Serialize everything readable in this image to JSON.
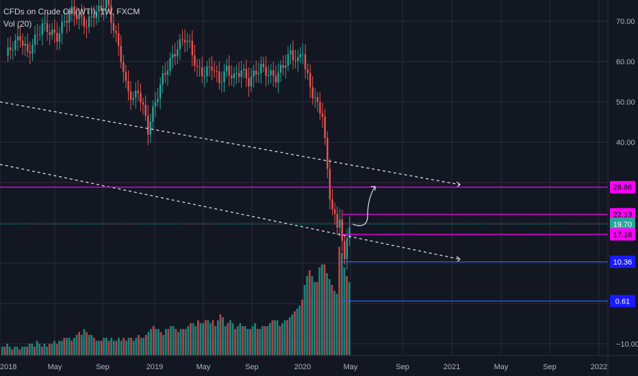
{
  "legend": {
    "symbol_line": "CFDs on Crude Oil (WTI), 1W, FXCM",
    "volume_line": "Vol (20)"
  },
  "chart_data": {
    "type": "candlestick",
    "title": "CFDs on Crude Oil (WTI), 1W, FXCM",
    "timeframe": "1W",
    "ylim": [
      -12,
      76
    ],
    "y_ticks": [
      70,
      60,
      50,
      40,
      -10
    ],
    "y_tick_labels": [
      "70.00",
      "60.00",
      "50.00",
      "40.00",
      "−10.00"
    ],
    "x_ticks": [
      "2018",
      "May",
      "Sep",
      "2019",
      "May",
      "Sep",
      "2020",
      "May",
      "Sep",
      "2021",
      "May",
      "Sep",
      "2022"
    ],
    "grid": true,
    "colors": {
      "up": "#26a69a",
      "down": "#ef5350",
      "background": "#131722",
      "grid": "#2a2e39"
    },
    "price_path": [
      [
        0,
        61.5
      ],
      [
        3,
        64
      ],
      [
        6,
        66
      ],
      [
        9,
        62
      ],
      [
        12,
        65.5
      ],
      [
        15,
        69
      ],
      [
        18,
        67.5
      ],
      [
        21,
        66
      ],
      [
        24,
        70
      ],
      [
        27,
        72.5
      ],
      [
        30,
        71
      ],
      [
        33,
        69
      ],
      [
        36,
        72
      ],
      [
        39,
        73
      ],
      [
        41,
        75.5
      ],
      [
        43,
        70.5
      ],
      [
        45,
        66
      ],
      [
        47,
        61
      ],
      [
        49,
        54
      ],
      [
        52,
        50.5
      ],
      [
        54,
        53
      ],
      [
        57,
        46
      ],
      [
        58,
        43
      ],
      [
        61,
        50
      ],
      [
        64,
        56
      ],
      [
        67,
        60
      ],
      [
        70,
        63.5
      ],
      [
        73,
        66
      ],
      [
        75,
        64
      ],
      [
        78,
        58
      ],
      [
        81,
        57
      ],
      [
        84,
        59
      ],
      [
        87,
        55
      ],
      [
        90,
        58
      ],
      [
        93,
        56
      ],
      [
        96,
        58
      ],
      [
        99,
        55
      ],
      [
        102,
        57.5
      ],
      [
        104,
        58.5
      ],
      [
        107,
        57
      ],
      [
        110,
        56
      ],
      [
        113,
        59
      ],
      [
        116,
        62
      ],
      [
        119,
        60
      ],
      [
        121,
        63
      ],
      [
        122,
        58
      ],
      [
        125,
        52
      ],
      [
        127,
        49
      ],
      [
        129,
        47
      ],
      [
        130,
        40
      ],
      [
        131,
        33
      ],
      [
        132,
        27
      ],
      [
        133,
        23.5
      ],
      [
        134,
        21
      ],
      [
        135,
        19
      ],
      [
        136,
        22
      ],
      [
        137,
        15
      ],
      [
        138,
        10
      ],
      [
        139,
        17
      ],
      [
        140,
        19.7
      ]
    ],
    "series": [
      {
        "name": "Vol (20)",
        "kind": "volume",
        "values": [
          3,
          3,
          4,
          3,
          2,
          3,
          3,
          2,
          3,
          3,
          3,
          4,
          4,
          3,
          5,
          4,
          3,
          4,
          3,
          4,
          4,
          5,
          4,
          5,
          5,
          6,
          6,
          6,
          5,
          6,
          7,
          8,
          7,
          9,
          8,
          7,
          7,
          6,
          5,
          5,
          5,
          6,
          6,
          5,
          6,
          5,
          5,
          6,
          5,
          6,
          5,
          6,
          6,
          5,
          6,
          7,
          6,
          6,
          7,
          8,
          9,
          10,
          9,
          9,
          8,
          7,
          9,
          9,
          10,
          10,
          9,
          8,
          9,
          9,
          9,
          10,
          11,
          11,
          10,
          12,
          11,
          11,
          12,
          12,
          11,
          12,
          10,
          12,
          14,
          13,
          10,
          11,
          12,
          11,
          9,
          10,
          11,
          10,
          10,
          9,
          9,
          10,
          11,
          9,
          9,
          10,
          10,
          10,
          11,
          12,
          12,
          12,
          10,
          11,
          12,
          12,
          13,
          14,
          15,
          16,
          17,
          19,
          24,
          27,
          29,
          27,
          25,
          25,
          30,
          31,
          31,
          28,
          26,
          24,
          22,
          21,
          37,
          35,
          30,
          27,
          25
        ]
      }
    ],
    "trendlines": [
      {
        "style": "dashed",
        "color": "#e0e3eb",
        "from": [
          "2018-01",
          50.0
        ],
        "to": [
          "2021-01",
          29.5
        ]
      },
      {
        "style": "dashed",
        "color": "#e0e3eb",
        "from": [
          "2018-01",
          34.5
        ],
        "to": [
          "2021-01",
          11.0
        ]
      }
    ],
    "horizontal_levels": [
      {
        "label": "28.86",
        "value": 28.86,
        "color": "#ff00ff",
        "badge_bg": "#ff00ff",
        "badge_fg": "#000000"
      },
      {
        "label": "22.13",
        "value": 22.13,
        "color": "#ff00ff",
        "badge_bg": "#ff00ff",
        "badge_fg": "#000000"
      },
      {
        "label": "19.70",
        "value": 19.7,
        "color": "#26a69a",
        "badge_bg": "#26a69a",
        "badge_fg": "#ffffff",
        "style": "dotted"
      },
      {
        "label": "17.16",
        "value": 17.16,
        "color": "#ff00ff",
        "badge_bg": "#ff00ff",
        "badge_fg": "#000000"
      },
      {
        "label": "10.36",
        "value": 10.36,
        "color": "#2962ff",
        "badge_bg": "#1a1aff",
        "badge_fg": "#ffffff"
      },
      {
        "label": "0.61",
        "value": 0.61,
        "color": "#2962ff",
        "badge_bg": "#1a1aff",
        "badge_fg": "#ffffff"
      }
    ],
    "annotation": {
      "kind": "curved-arrow",
      "color": "#e0e3eb",
      "from": [
        "2020-04",
        19.7
      ],
      "to": [
        "2020-06",
        29.0
      ]
    }
  }
}
